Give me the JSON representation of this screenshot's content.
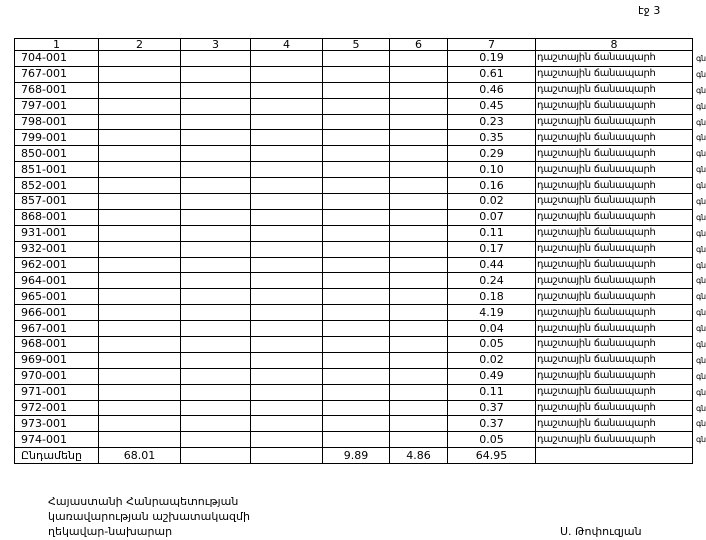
{
  "page_label": "էջ 3",
  "headers": [
    "1",
    "2",
    "3",
    "4",
    "5",
    "6",
    "7",
    "8"
  ],
  "row_text": "դաշտային ճանապարհ",
  "side_note": "գն",
  "rows": [
    {
      "code": "704-001",
      "v7": "0.19"
    },
    {
      "code": "767-001",
      "v7": "0.61"
    },
    {
      "code": "768-001",
      "v7": "0.46"
    },
    {
      "code": "797-001",
      "v7": "0.45"
    },
    {
      "code": "798-001",
      "v7": "0.23"
    },
    {
      "code": "799-001",
      "v7": "0.35"
    },
    {
      "code": "850-001",
      "v7": "0.29"
    },
    {
      "code": "851-001",
      "v7": "0.10"
    },
    {
      "code": "852-001",
      "v7": "0.16"
    },
    {
      "code": "857-001",
      "v7": "0.02"
    },
    {
      "code": "868-001",
      "v7": "0.07"
    },
    {
      "code": "931-001",
      "v7": "0.11"
    },
    {
      "code": "932-001",
      "v7": "0.17"
    },
    {
      "code": "962-001",
      "v7": "0.44"
    },
    {
      "code": "964-001",
      "v7": "0.24"
    },
    {
      "code": "965-001",
      "v7": "0.18"
    },
    {
      "code": "966-001",
      "v7": "4.19"
    },
    {
      "code": "967-001",
      "v7": "0.04"
    },
    {
      "code": "968-001",
      "v7": "0.05"
    },
    {
      "code": "969-001",
      "v7": "0.02"
    },
    {
      "code": "970-001",
      "v7": "0.49"
    },
    {
      "code": "971-001",
      "v7": "0.11"
    },
    {
      "code": "972-001",
      "v7": "0.37"
    },
    {
      "code": "973-001",
      "v7": "0.37"
    },
    {
      "code": "974-001",
      "v7": "0.05"
    }
  ],
  "total": {
    "label": "Ընդամենը",
    "c2": "68.01",
    "c5": "9.89",
    "c6": "4.86",
    "c7": "64.95"
  },
  "footer": {
    "line1": "Հայաստանի Հանրապետության",
    "line2": "կառավարության աշխատակազմի",
    "line3": "ղեկավար-նախարար",
    "signer": "Ս. Թոփուզյան"
  }
}
